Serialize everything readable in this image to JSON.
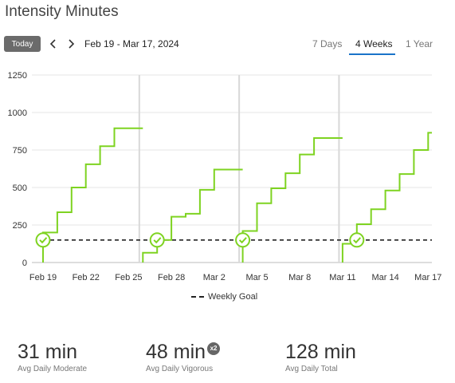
{
  "header": {
    "title": "Intensity Minutes"
  },
  "toolbar": {
    "today_label": "Today",
    "date_range": "Feb 19 - Mar 17, 2024",
    "tabs": [
      {
        "label": "7 Days",
        "active": false
      },
      {
        "label": "4 Weeks",
        "active": true
      },
      {
        "label": "1 Year",
        "active": false
      }
    ]
  },
  "colors": {
    "accent": "#1a73c9",
    "series": "#7ed321",
    "goal": "#222222",
    "grid": "#e6e6e6"
  },
  "chart_data": {
    "type": "line",
    "ylim": [
      0,
      1250
    ],
    "y_ticks": [
      "1250",
      "1000",
      "750",
      "500",
      "250",
      "0"
    ],
    "x_tick_labels": [
      "Feb 19",
      "Feb 22",
      "Feb 25",
      "Feb 28",
      "Mar 2",
      "Mar 5",
      "Mar 8",
      "Mar 11",
      "Mar 14",
      "Mar 17"
    ],
    "x_tick_days": [
      0,
      3,
      6,
      9,
      12,
      15,
      18,
      21,
      24,
      27
    ],
    "week_boundaries": [
      6.75,
      13.75,
      20.75
    ],
    "weekly_goal": 150,
    "series": [
      {
        "days": [
          0,
          1,
          2,
          3,
          4,
          5,
          6
        ],
        "values": [
          200,
          335,
          500,
          655,
          775,
          895,
          895
        ]
      },
      {
        "days": [
          7,
          8,
          9,
          10,
          11,
          12,
          13
        ],
        "values": [
          65,
          150,
          305,
          325,
          485,
          620,
          620
        ]
      },
      {
        "days": [
          14,
          15,
          16,
          17,
          18,
          19,
          20
        ],
        "values": [
          210,
          395,
          495,
          595,
          720,
          830,
          830
        ]
      },
      {
        "days": [
          21,
          22,
          23,
          24,
          25,
          26,
          27
        ],
        "values": [
          125,
          255,
          355,
          480,
          590,
          750,
          865
        ]
      }
    ],
    "goal_met_markers": [
      {
        "day": 0,
        "value": 150
      },
      {
        "day": 8,
        "value": 150
      },
      {
        "day": 14,
        "value": 150
      },
      {
        "day": 22,
        "value": 150
      }
    ]
  },
  "legend": {
    "label": "Weekly Goal"
  },
  "stats": [
    {
      "value": "31 min",
      "label": "Avg Daily Moderate"
    },
    {
      "value": "48 min",
      "badge": "x2",
      "label": "Avg Daily Vigorous"
    },
    {
      "value": "128 min",
      "label": "Avg Daily Total"
    }
  ]
}
